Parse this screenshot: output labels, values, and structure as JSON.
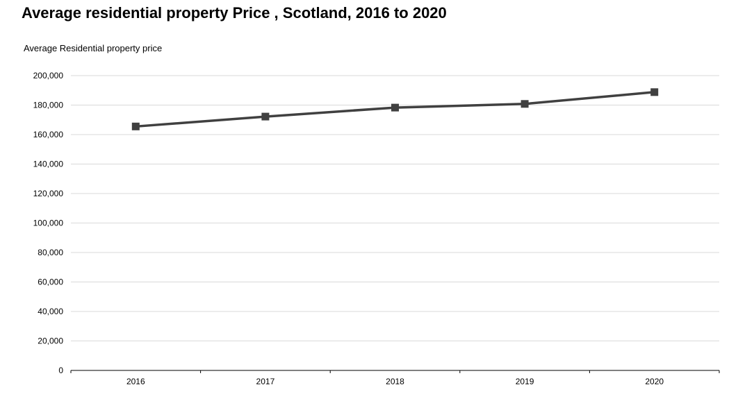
{
  "chart_data": {
    "type": "line",
    "title": "Average residential property Price , Scotland, 2016 to 2020",
    "xlabel": "",
    "ylabel": "Average Residential property price",
    "categories": [
      "2016",
      "2017",
      "2018",
      "2019",
      "2020"
    ],
    "series": [
      {
        "values": [
          165500,
          172200,
          178300,
          180800,
          188800
        ],
        "color": "#404040",
        "marker": "square"
      }
    ],
    "ylim": [
      0,
      200000
    ],
    "yticks": [
      0,
      20000,
      40000,
      60000,
      80000,
      100000,
      120000,
      140000,
      160000,
      180000,
      200000
    ],
    "ytick_labels": [
      "0",
      "20,000",
      "40,000",
      "60,000",
      "80,000",
      "100,000",
      "120,000",
      "140,000",
      "160,000",
      "180,000",
      "200,000"
    ],
    "grid": true,
    "legend": "none"
  }
}
